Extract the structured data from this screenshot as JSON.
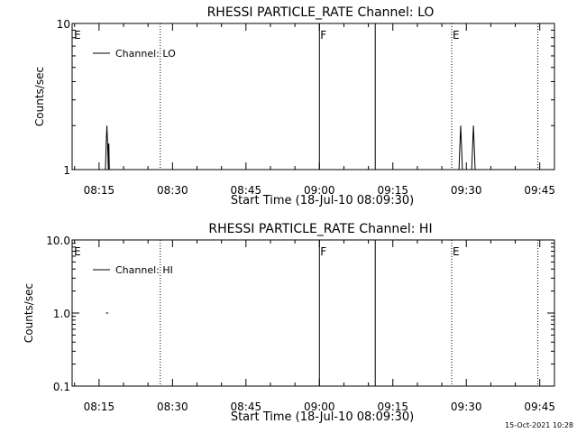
{
  "chart_data": [
    {
      "type": "line",
      "title": "RHESSI PARTICLE_RATE Channel: LO",
      "xlabel": "Start Time (18-Jul-10 08:09:30)",
      "ylabel": "Counts/sec",
      "y_scale": "log",
      "ylim": [
        1,
        10
      ],
      "y_tick_labels": [
        "1",
        "10"
      ],
      "x_unit": "minutes since 08:00 UT",
      "xlim": [
        9.5,
        108
      ],
      "x_tick_labels": [
        "08:15",
        "08:30",
        "08:45",
        "09:00",
        "09:15",
        "09:30",
        "09:45"
      ],
      "legend": {
        "position": "top-left",
        "entries": [
          "Channel: LO"
        ]
      },
      "markers": [
        {
          "x": 9.7,
          "label": "E",
          "style": "none"
        },
        {
          "x": 27.5,
          "label": "",
          "style": "dotted"
        },
        {
          "x": 60.0,
          "label": "F",
          "style": "solid"
        },
        {
          "x": 71.4,
          "label": "",
          "style": "solid"
        },
        {
          "x": 87.0,
          "label": "E",
          "style": "dotted"
        },
        {
          "x": 104.6,
          "label": "",
          "style": "dotted"
        }
      ],
      "series": [
        {
          "name": "Channel: LO",
          "x": [
            16.3,
            16.5,
            16.6,
            16.7,
            16.9,
            16.95,
            17.0,
            17.1,
            null,
            88.5,
            88.7,
            88.85,
            89.0,
            89.2,
            null,
            91.1,
            91.3,
            91.45,
            91.6,
            91.8
          ],
          "y": [
            1,
            1.65,
            2.0,
            1.65,
            1,
            1.5,
            1.5,
            1,
            null,
            1,
            1.5,
            2.0,
            1.5,
            1,
            null,
            1,
            1.5,
            2.0,
            1.5,
            1
          ]
        }
      ]
    },
    {
      "type": "line",
      "title": "RHESSI PARTICLE_RATE Channel: HI",
      "xlabel": "Start Time (18-Jul-10 08:09:30)",
      "ylabel": "Counts/sec",
      "y_scale": "log",
      "ylim": [
        0.1,
        10
      ],
      "y_tick_labels": [
        "0.1",
        "1.0",
        "10.0"
      ],
      "x_unit": "minutes since 08:00 UT",
      "xlim": [
        9.5,
        108
      ],
      "x_tick_labels": [
        "08:15",
        "08:30",
        "08:45",
        "09:00",
        "09:15",
        "09:30",
        "09:45"
      ],
      "legend": {
        "position": "top-left",
        "entries": [
          "Channel: HI"
        ]
      },
      "markers": [
        {
          "x": 9.7,
          "label": "E",
          "style": "none"
        },
        {
          "x": 27.5,
          "label": "",
          "style": "dotted"
        },
        {
          "x": 60.0,
          "label": "F",
          "style": "solid"
        },
        {
          "x": 71.4,
          "label": "",
          "style": "solid"
        },
        {
          "x": 87.0,
          "label": "E",
          "style": "dotted"
        },
        {
          "x": 104.6,
          "label": "",
          "style": "dotted"
        }
      ],
      "series": [
        {
          "name": "Channel: HI",
          "x": [
            16.4,
            16.9
          ],
          "y": [
            1.0,
            1.0
          ]
        }
      ]
    }
  ],
  "footer": {
    "timestamp": "15-Oct-2021 10:28"
  }
}
